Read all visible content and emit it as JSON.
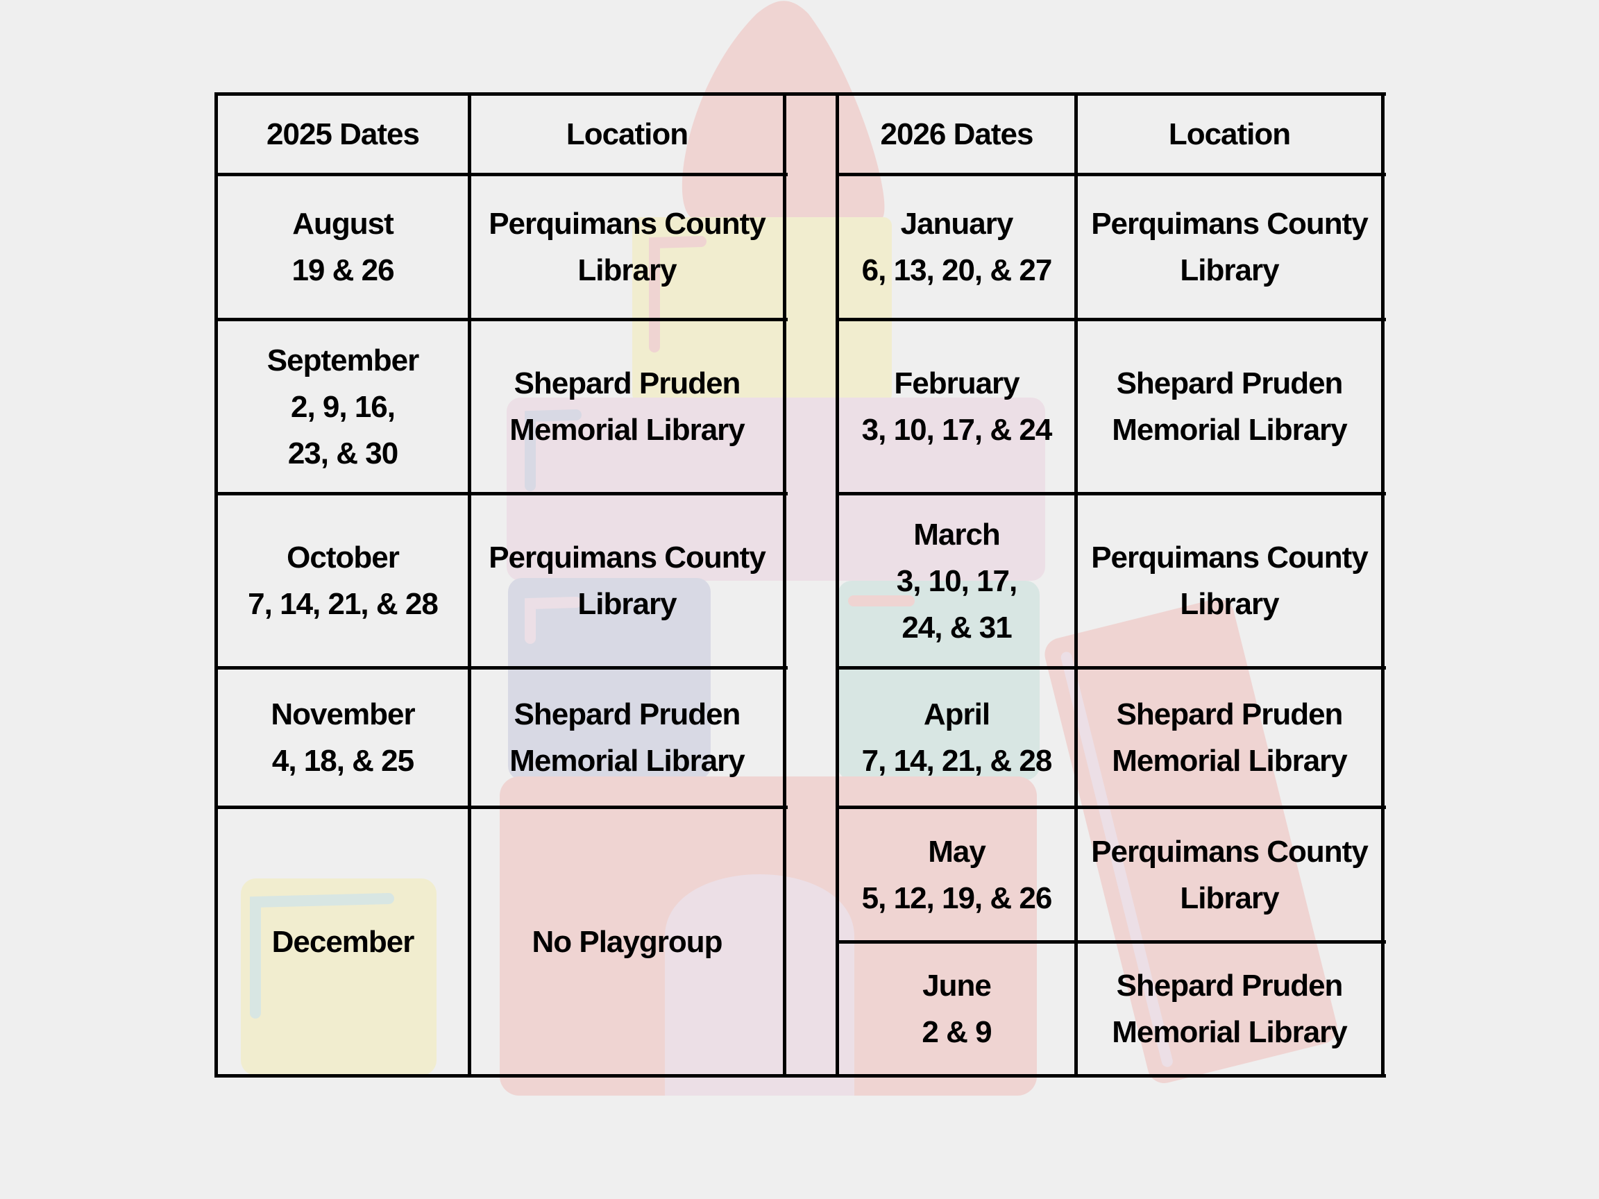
{
  "colors": {
    "background": "#efefef",
    "pink": "#efd4d2",
    "yellow": "#f1edcf",
    "lavender": "#ecdfe6",
    "blue": "#d8d9e4",
    "mint": "#d8e6e3",
    "lines": "#000000"
  },
  "left": {
    "headers": [
      "2025 Dates",
      "Location"
    ],
    "rows": [
      {
        "dates": [
          "August",
          "19 & 26"
        ],
        "location": [
          "Perquimans County",
          "Library"
        ]
      },
      {
        "dates": [
          "September",
          "2, 9, 16,",
          "23, & 30"
        ],
        "location": [
          "Shepard Pruden",
          "Memorial Library"
        ]
      },
      {
        "dates": [
          "October",
          "7, 14, 21, & 28"
        ],
        "location": [
          "Perquimans County",
          "Library"
        ]
      },
      {
        "dates": [
          "November",
          "4, 18, & 25"
        ],
        "location": [
          "Shepard Pruden",
          "Memorial Library"
        ]
      },
      {
        "dates": [
          "December"
        ],
        "location": [
          "No Playgroup"
        ]
      }
    ]
  },
  "right": {
    "headers": [
      "2026 Dates",
      "Location"
    ],
    "rows": [
      {
        "dates": [
          "January",
          "6, 13, 20, & 27"
        ],
        "location": [
          "Perquimans County",
          "Library"
        ]
      },
      {
        "dates": [
          "February",
          "3, 10, 17, & 24"
        ],
        "location": [
          "Shepard Pruden",
          "Memorial Library"
        ]
      },
      {
        "dates": [
          "March",
          "3, 10, 17,",
          "24, & 31"
        ],
        "location": [
          "Perquimans County",
          "Library"
        ]
      },
      {
        "dates": [
          "April",
          "7, 14, 21, & 28"
        ],
        "location": [
          "Shepard Pruden",
          "Memorial Library"
        ]
      },
      {
        "dates": [
          "May",
          "5, 12, 19, & 26"
        ],
        "location": [
          "Perquimans County",
          "Library"
        ]
      },
      {
        "dates": [
          "June",
          "2 & 9"
        ],
        "location": [
          "Shepard Pruden",
          "Memorial Library"
        ]
      }
    ]
  }
}
